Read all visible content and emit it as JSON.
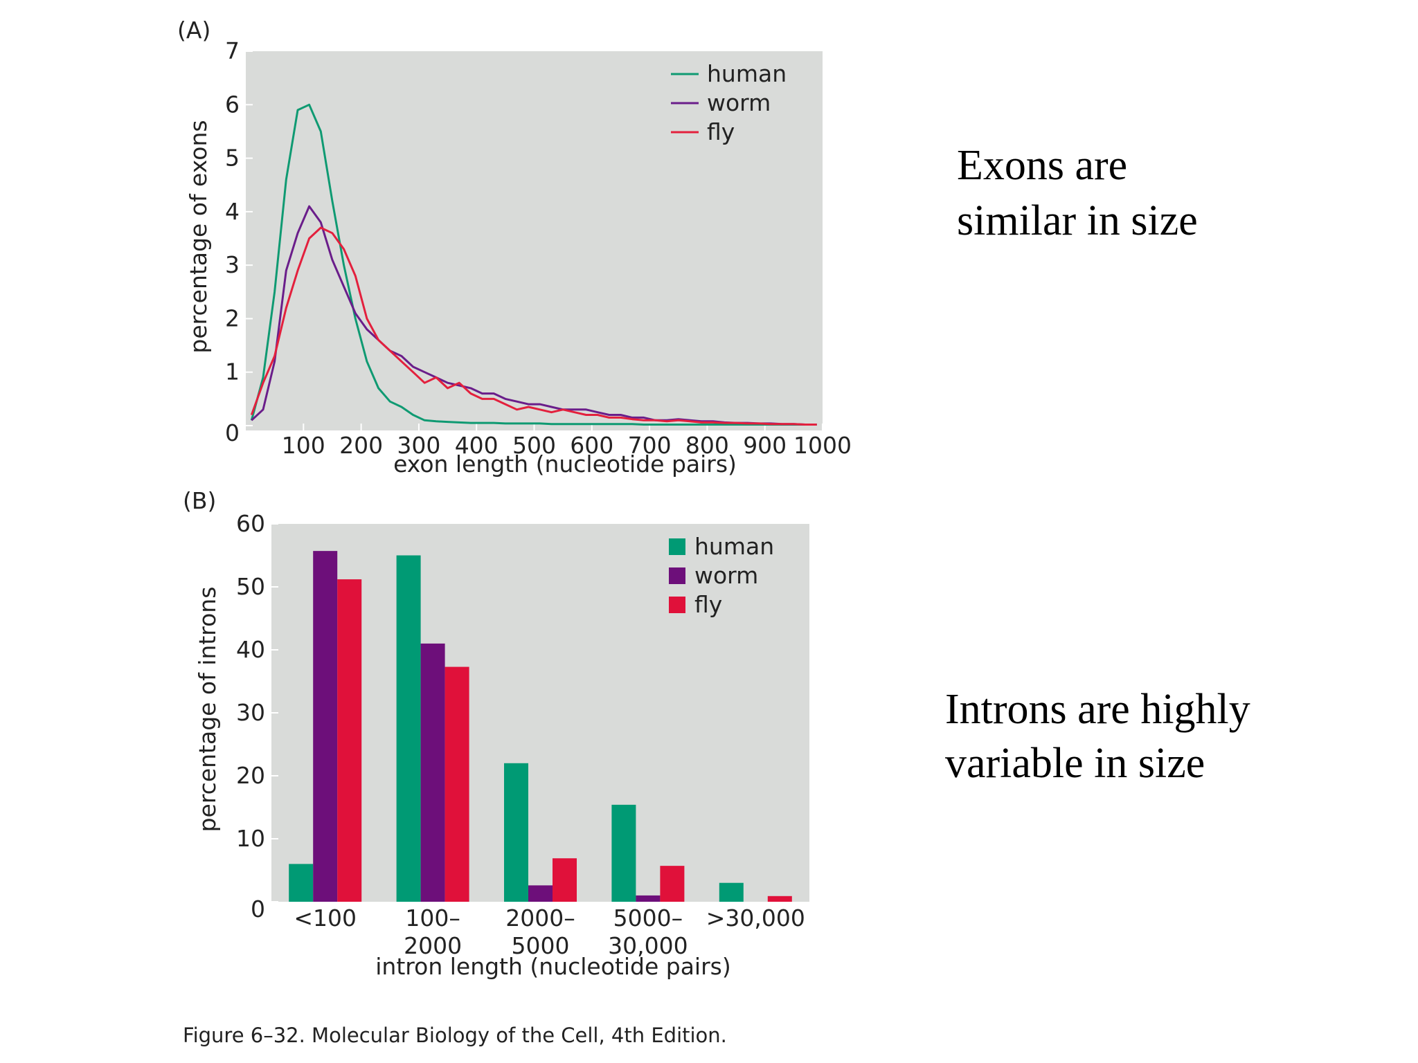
{
  "chart_data": [
    {
      "type": "line",
      "panel": "(A)",
      "ylabel": "percentage of exons",
      "xlabel": "exon length (nucleotide pairs)",
      "annotation": [
        "Exons are",
        "similar in size"
      ],
      "legend": "upper right",
      "background": "#d9dbd9",
      "xlim": [
        0,
        1000
      ],
      "xticks": [
        100,
        200,
        300,
        400,
        500,
        600,
        700,
        800,
        900,
        1000
      ],
      "ylim": [
        0,
        7
      ],
      "yticks": [
        0,
        1,
        2,
        3,
        4,
        5,
        6,
        7
      ],
      "x": [
        10,
        30,
        50,
        70,
        90,
        110,
        130,
        150,
        170,
        190,
        210,
        230,
        250,
        270,
        290,
        310,
        330,
        350,
        370,
        390,
        410,
        430,
        450,
        470,
        490,
        510,
        530,
        550,
        570,
        590,
        610,
        630,
        650,
        670,
        690,
        710,
        730,
        750,
        770,
        790,
        810,
        830,
        850,
        870,
        890,
        910,
        930,
        950,
        970,
        990
      ],
      "series": [
        {
          "name": "human",
          "color": "#0f9a72",
          "values": [
            0.1,
            0.9,
            2.5,
            4.6,
            5.9,
            6.0,
            5.5,
            4.2,
            3.0,
            2.0,
            1.2,
            0.7,
            0.45,
            0.35,
            0.2,
            0.1,
            0.08,
            0.07,
            0.06,
            0.05,
            0.05,
            0.05,
            0.04,
            0.04,
            0.04,
            0.04,
            0.03,
            0.03,
            0.03,
            0.03,
            0.03,
            0.03,
            0.03,
            0.03,
            0.02,
            0.02,
            0.02,
            0.02,
            0.02,
            0.02,
            0.02,
            0.02,
            0.02,
            0.02,
            0.02,
            0.02,
            0.02,
            0.02,
            0.02,
            0.02
          ]
        },
        {
          "name": "worm",
          "color": "#6a1d8a",
          "values": [
            0.1,
            0.3,
            1.2,
            2.9,
            3.6,
            4.1,
            3.8,
            3.1,
            2.6,
            2.1,
            1.8,
            1.6,
            1.4,
            1.3,
            1.1,
            1.0,
            0.9,
            0.8,
            0.75,
            0.7,
            0.6,
            0.6,
            0.5,
            0.45,
            0.4,
            0.4,
            0.35,
            0.3,
            0.3,
            0.3,
            0.25,
            0.2,
            0.2,
            0.15,
            0.15,
            0.1,
            0.1,
            0.12,
            0.1,
            0.08,
            0.08,
            0.06,
            0.05,
            0.05,
            0.04,
            0.04,
            0.03,
            0.03,
            0.02,
            0.02
          ]
        },
        {
          "name": "fly",
          "color": "#e3203d",
          "values": [
            0.2,
            0.8,
            1.3,
            2.2,
            2.9,
            3.5,
            3.7,
            3.6,
            3.3,
            2.8,
            2.0,
            1.6,
            1.4,
            1.2,
            1.0,
            0.8,
            0.9,
            0.7,
            0.8,
            0.6,
            0.5,
            0.5,
            0.4,
            0.3,
            0.35,
            0.3,
            0.25,
            0.3,
            0.25,
            0.2,
            0.2,
            0.15,
            0.15,
            0.12,
            0.1,
            0.1,
            0.08,
            0.1,
            0.08,
            0.06,
            0.06,
            0.05,
            0.05,
            0.04,
            0.04,
            0.03,
            0.03,
            0.03,
            0.02,
            0.02
          ]
        }
      ]
    },
    {
      "type": "bar",
      "panel": "(B)",
      "ylabel": "percentage of introns",
      "xlabel": "intron length (nucleotide pairs)",
      "annotation": [
        "Introns are highly",
        "variable in size"
      ],
      "legend": "upper right",
      "background": "#d9dbd9",
      "categories": [
        "<100",
        "100–2000",
        "2000–5000",
        "5000–30,000",
        ">30,000"
      ],
      "ylim": [
        0,
        60
      ],
      "yticks": [
        0,
        10,
        20,
        30,
        40,
        50,
        60
      ],
      "series": [
        {
          "name": "human",
          "color": "#009a74",
          "values": [
            6,
            55,
            22,
            15.4,
            3
          ]
        },
        {
          "name": "worm",
          "color": "#6d0f7a",
          "values": [
            55.7,
            41,
            2.6,
            1,
            0
          ]
        },
        {
          "name": "fly",
          "color": "#e0113a",
          "values": [
            51.2,
            37.3,
            6.9,
            5.7,
            0.9
          ]
        }
      ]
    }
  ],
  "caption": "Figure 6–32. Molecular Biology of the Cell, 4th Edition."
}
